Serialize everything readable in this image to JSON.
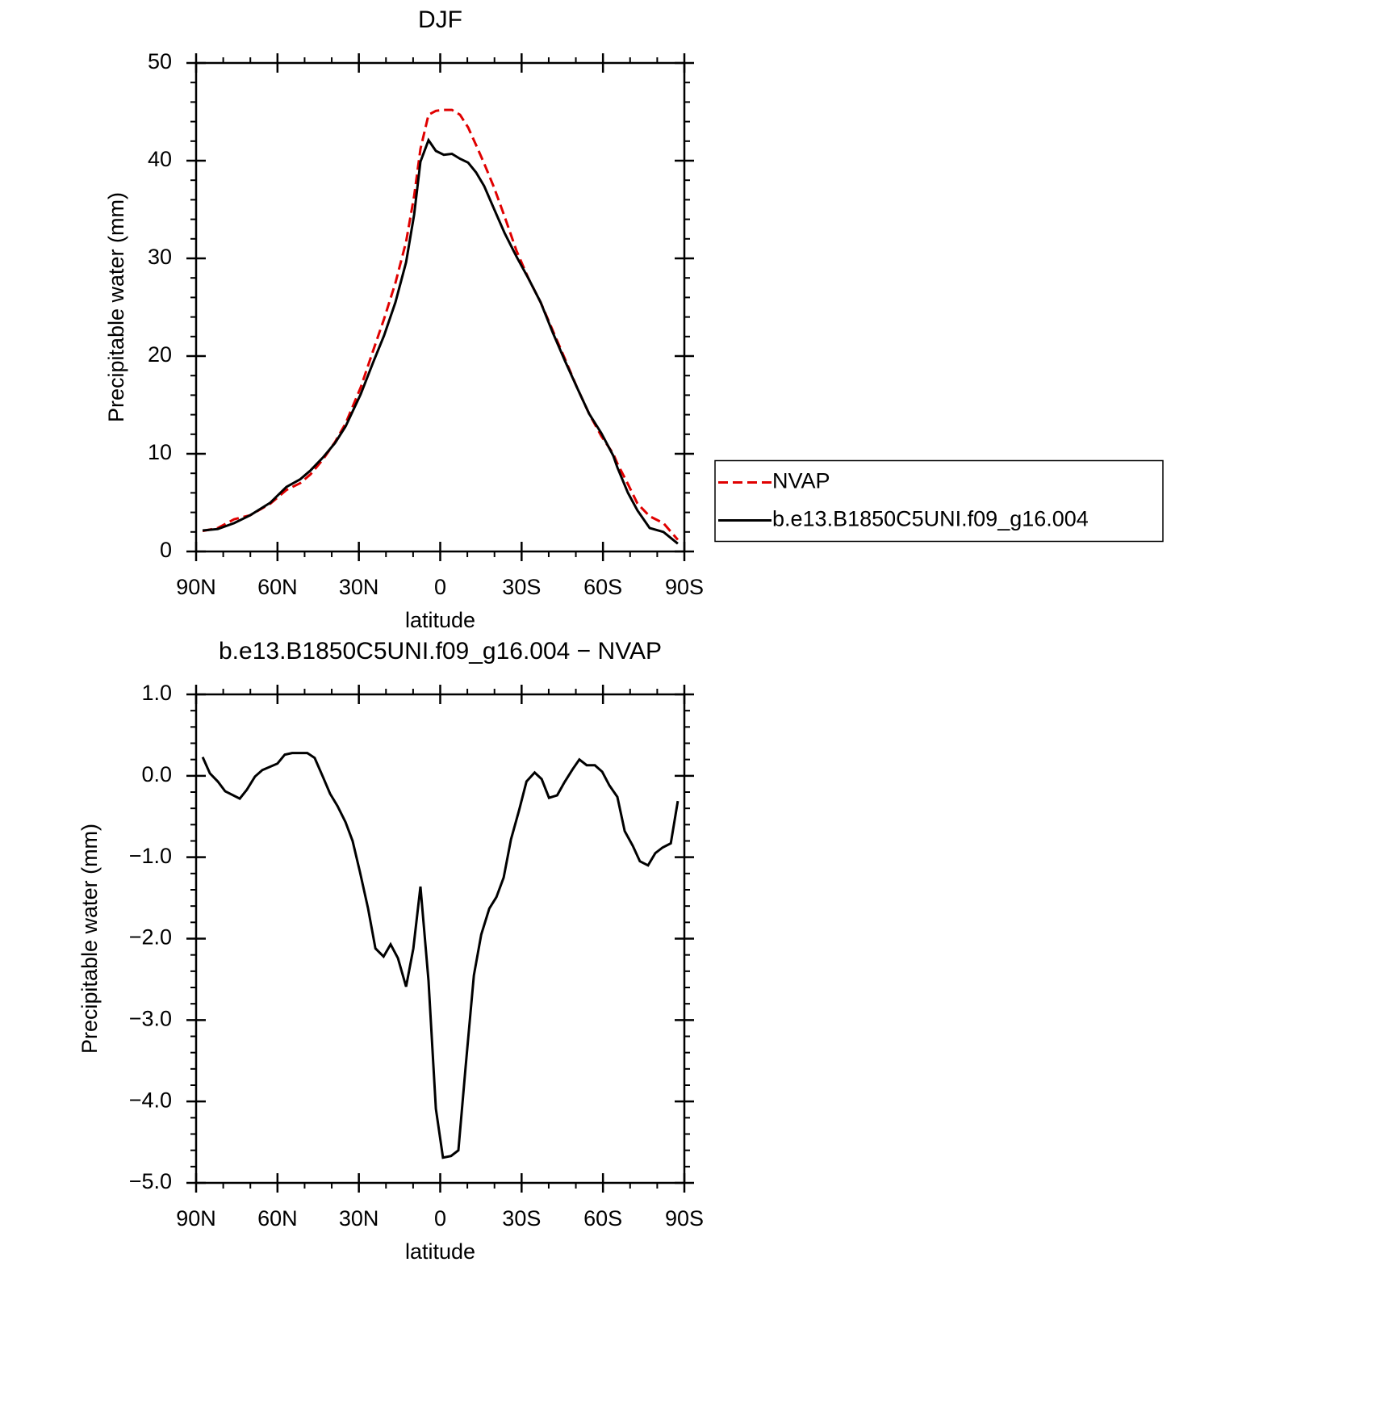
{
  "chart_data": [
    {
      "type": "line",
      "title": "DJF",
      "xlabel": "latitude",
      "ylabel": "Precipitable water (mm)",
      "x": [
        87.6,
        82.0,
        76.0,
        70.1,
        62.6,
        56.7,
        51.6,
        47.8,
        43.3,
        38.8,
        34.9,
        29.3,
        24.8,
        20.7,
        16.5,
        12.6,
        9.6,
        7.3,
        4.3,
        1.6,
        -1.3,
        -4.3,
        -7.3,
        -10.3,
        -13.2,
        -16.2,
        -19.8,
        -23.7,
        -28.1,
        -32.6,
        -37.0,
        -41.5,
        -46.0,
        -50.4,
        -54.9,
        -59.4,
        -63.8,
        -65.3,
        -69.2,
        -72.7,
        -77.2,
        -82.3,
        -87.6
      ],
      "series": [
        {
          "name": "NVAP",
          "color": "#e00000",
          "style": "dashed",
          "values": [
            2.1,
            2.4,
            3.3,
            3.7,
            4.9,
            6.3,
            7.0,
            7.9,
            9.4,
            11.2,
            13.1,
            16.8,
            20.5,
            23.8,
            27.5,
            31.7,
            36.4,
            41.2,
            44.7,
            45.1,
            45.2,
            45.2,
            44.7,
            43.4,
            41.6,
            39.7,
            37.3,
            34.3,
            30.8,
            27.9,
            25.5,
            22.6,
            19.7,
            16.8,
            14.1,
            11.8,
            10.0,
            9.0,
            6.9,
            4.9,
            3.6,
            2.9,
            1.2
          ]
        },
        {
          "name": "b.e13.B1850C5UNI.f09_g16.004",
          "color": "#000000",
          "style": "solid",
          "values": [
            2.15,
            2.3,
            2.9,
            3.7,
            5.0,
            6.6,
            7.4,
            8.3,
            9.6,
            11.1,
            12.8,
            16.1,
            19.3,
            22.1,
            25.5,
            29.6,
            34.5,
            39.9,
            42.1,
            41.0,
            40.6,
            40.7,
            40.2,
            39.8,
            38.8,
            37.4,
            35.1,
            32.6,
            30.2,
            27.9,
            25.5,
            22.4,
            19.5,
            16.8,
            14.1,
            12.1,
            9.8,
            8.6,
            6.0,
            4.2,
            2.4,
            2.0,
            0.8
          ]
        }
      ],
      "xlim": [
        90,
        -90
      ],
      "xticks": [
        {
          "value": 90,
          "label": "90N"
        },
        {
          "value": 60,
          "label": "60N"
        },
        {
          "value": 30,
          "label": "30N"
        },
        0,
        {
          "value": -30,
          "label": "30S"
        },
        {
          "value": -60,
          "label": "60S"
        },
        {
          "value": -90,
          "label": "90S"
        }
      ],
      "xminorticks": [
        80,
        70,
        50,
        40,
        20,
        10,
        -10,
        -20,
        -40,
        -50,
        -70,
        -80
      ],
      "ylim": [
        0,
        50
      ],
      "yticks": [
        0,
        10,
        20,
        30,
        40,
        50
      ],
      "yminorticks": [
        2,
        4,
        6,
        8,
        12,
        14,
        16,
        18,
        22,
        24,
        26,
        28,
        32,
        34,
        36,
        38,
        42,
        44,
        46,
        48
      ],
      "legend": "right"
    },
    {
      "type": "line",
      "title": "b.e13.B1850C5UNI.f09_g16.004 − NVAP",
      "xlabel": "latitude",
      "ylabel": "Precipitable water (mm)",
      "x": [
        87.6,
        84.9,
        82.0,
        79.3,
        73.9,
        71.3,
        68.3,
        65.6,
        60.0,
        57.3,
        54.6,
        51.6,
        49.0,
        46.3,
        43.3,
        40.6,
        37.9,
        34.9,
        32.3,
        29.6,
        26.6,
        23.9,
        20.9,
        18.3,
        15.6,
        12.6,
        9.9,
        7.3,
        4.3,
        1.6,
        -1.0,
        -4.0,
        -6.7,
        -9.4,
        -12.4,
        -15.1,
        -18.1,
        -20.7,
        -23.4,
        -26.1,
        -29.1,
        -31.8,
        -34.8,
        -37.4,
        -40.1,
        -43.1,
        -45.8,
        -48.8,
        -51.3,
        -54.0,
        -57.0,
        -59.7,
        -62.4,
        -65.3,
        -68.0,
        -71.0,
        -73.6,
        -76.6,
        -79.3,
        -82.0,
        -85.0,
        -87.6
      ],
      "series": [
        {
          "color": "#000000",
          "style": "solid",
          "values": [
            0.23,
            0.03,
            -0.07,
            -0.19,
            -0.28,
            -0.17,
            -0.01,
            0.07,
            0.15,
            0.26,
            0.28,
            0.28,
            0.28,
            0.22,
            -0.01,
            -0.22,
            -0.37,
            -0.57,
            -0.8,
            -1.18,
            -1.63,
            -2.12,
            -2.22,
            -2.07,
            -2.24,
            -2.59,
            -2.12,
            -1.36,
            -2.52,
            -4.09,
            -4.69,
            -4.67,
            -4.6,
            -3.56,
            -2.45,
            -1.95,
            -1.63,
            -1.49,
            -1.25,
            -0.78,
            -0.42,
            -0.07,
            0.04,
            -0.04,
            -0.27,
            -0.24,
            -0.08,
            0.08,
            0.2,
            0.13,
            0.13,
            0.05,
            -0.12,
            -0.26,
            -0.68,
            -0.86,
            -1.05,
            -1.1,
            -0.95,
            -0.88,
            -0.83,
            -0.31
          ]
        }
      ],
      "xlim": [
        90,
        -90
      ],
      "xticks": [
        {
          "value": 90,
          "label": "90N"
        },
        {
          "value": 60,
          "label": "60N"
        },
        {
          "value": 30,
          "label": "30N"
        },
        0,
        {
          "value": -30,
          "label": "30S"
        },
        {
          "value": -60,
          "label": "60S"
        },
        {
          "value": -90,
          "label": "90S"
        }
      ],
      "xminorticks": [
        80,
        70,
        50,
        40,
        20,
        10,
        -10,
        -20,
        -40,
        -50,
        -70,
        -80
      ],
      "ylim": [
        -5,
        1
      ],
      "yticks": [
        {
          "value": 1,
          "label": "1.0"
        },
        {
          "value": 0,
          "label": "0.0"
        },
        {
          "value": -1,
          "label": "−1.0"
        },
        {
          "value": -2,
          "label": "−2.0"
        },
        {
          "value": -3,
          "label": "−3.0"
        },
        {
          "value": -4,
          "label": "−4.0"
        },
        {
          "value": -5,
          "label": "−5.0"
        }
      ],
      "yminorticks": [
        0.8,
        0.6,
        0.4,
        0.2,
        -0.2,
        -0.4,
        -0.6,
        -0.8,
        -1.2,
        -1.4,
        -1.6,
        -1.8,
        -2.2,
        -2.4,
        -2.6,
        -2.8,
        -3.2,
        -3.4,
        -3.6,
        -3.8,
        -4.2,
        -4.4,
        -4.6,
        -4.8
      ]
    }
  ]
}
